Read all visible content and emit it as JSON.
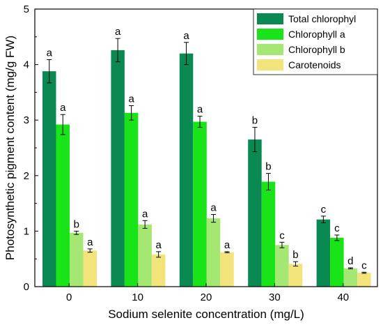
{
  "chart_data": {
    "type": "bar",
    "xlabel": "Sodium selenite concentration (mg/L)",
    "ylabel": "Photosynthetic pigment content (mg/g FW)",
    "ylim": [
      0,
      5
    ],
    "yticks": [
      "0",
      "1",
      "2",
      "3",
      "4",
      "5"
    ],
    "categories": [
      "0",
      "10",
      "20",
      "30",
      "40"
    ],
    "legend_position": "top-right",
    "grid": false,
    "series": [
      {
        "name": "Total chlorophyl",
        "color": "#0a8a52",
        "values": [
          3.88,
          4.26,
          4.2,
          2.65,
          1.21
        ],
        "errors": [
          0.21,
          0.21,
          0.2,
          0.22,
          0.06
        ],
        "labels": [
          "a",
          "a",
          "a",
          "b",
          "c"
        ]
      },
      {
        "name": "Chlorophyll a",
        "color": "#18e418",
        "values": [
          2.92,
          3.13,
          2.97,
          1.89,
          0.88
        ],
        "errors": [
          0.18,
          0.13,
          0.1,
          0.15,
          0.05
        ],
        "labels": [
          "a",
          "a",
          "a",
          "b",
          "c"
        ]
      },
      {
        "name": "Chlorophyll b",
        "color": "#a4e873",
        "values": [
          0.97,
          1.12,
          1.23,
          0.75,
          0.33
        ],
        "errors": [
          0.03,
          0.07,
          0.07,
          0.05,
          0.01
        ],
        "labels": [
          "b",
          "a",
          "a",
          "c",
          "d"
        ]
      },
      {
        "name": "Carotenoids",
        "color": "#f2e47a",
        "values": [
          0.65,
          0.58,
          0.62,
          0.41,
          0.25
        ],
        "errors": [
          0.03,
          0.05,
          0.01,
          0.04,
          0.01
        ],
        "labels": [
          "a",
          "a",
          "a",
          "b",
          "c"
        ]
      }
    ]
  }
}
